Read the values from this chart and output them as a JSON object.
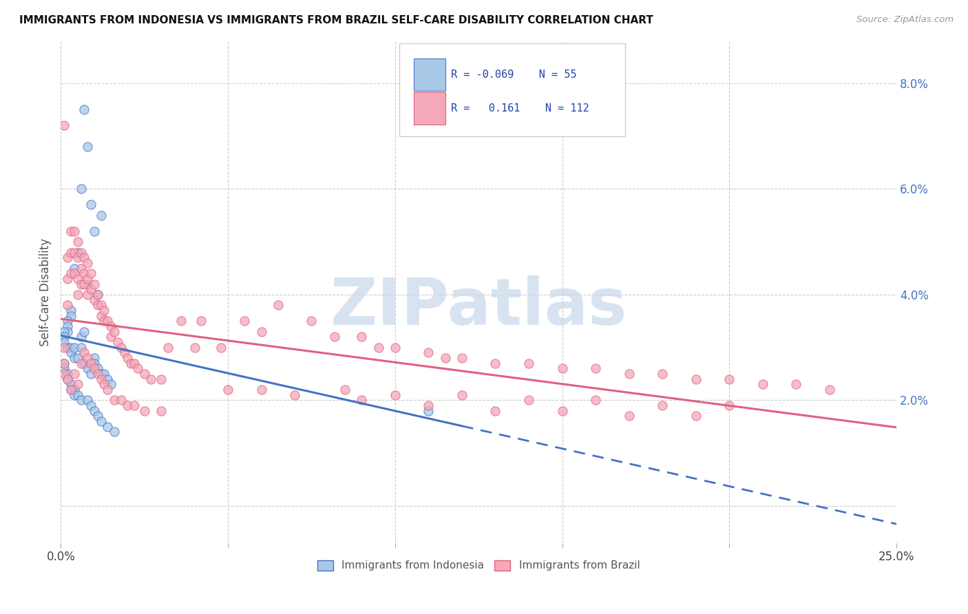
{
  "title": "IMMIGRANTS FROM INDONESIA VS IMMIGRANTS FROM BRAZIL SELF-CARE DISABILITY CORRELATION CHART",
  "source": "Source: ZipAtlas.com",
  "ylabel": "Self-Care Disability",
  "x_min": 0.0,
  "x_max": 0.25,
  "y_min": -0.007,
  "y_max": 0.088,
  "color_indonesia": "#a8c8e8",
  "color_brazil": "#f4a8b8",
  "color_indonesia_line": "#4472c4",
  "color_brazil_line": "#e06080",
  "watermark_color": "#c8d8ec",
  "indonesia_x": [
    0.007,
    0.008,
    0.006,
    0.009,
    0.012,
    0.01,
    0.005,
    0.004,
    0.008,
    0.011,
    0.003,
    0.003,
    0.002,
    0.002,
    0.002,
    0.001,
    0.001,
    0.001,
    0.002,
    0.003,
    0.003,
    0.004,
    0.004,
    0.005,
    0.006,
    0.006,
    0.007,
    0.007,
    0.008,
    0.009,
    0.01,
    0.01,
    0.011,
    0.012,
    0.013,
    0.014,
    0.015,
    0.001,
    0.001,
    0.002,
    0.002,
    0.003,
    0.003,
    0.004,
    0.004,
    0.005,
    0.006,
    0.008,
    0.009,
    0.01,
    0.011,
    0.012,
    0.014,
    0.016,
    0.11
  ],
  "indonesia_y": [
    0.075,
    0.068,
    0.06,
    0.057,
    0.055,
    0.052,
    0.048,
    0.045,
    0.042,
    0.04,
    0.037,
    0.036,
    0.035,
    0.034,
    0.033,
    0.033,
    0.032,
    0.031,
    0.03,
    0.03,
    0.029,
    0.03,
    0.028,
    0.028,
    0.03,
    0.032,
    0.027,
    0.033,
    0.026,
    0.025,
    0.028,
    0.027,
    0.026,
    0.025,
    0.025,
    0.024,
    0.023,
    0.027,
    0.026,
    0.025,
    0.024,
    0.023,
    0.022,
    0.022,
    0.021,
    0.021,
    0.02,
    0.02,
    0.019,
    0.018,
    0.017,
    0.016,
    0.015,
    0.014,
    0.018
  ],
  "brazil_x": [
    0.001,
    0.001,
    0.001,
    0.002,
    0.002,
    0.002,
    0.003,
    0.003,
    0.003,
    0.004,
    0.004,
    0.004,
    0.005,
    0.005,
    0.005,
    0.005,
    0.006,
    0.006,
    0.006,
    0.007,
    0.007,
    0.007,
    0.008,
    0.008,
    0.008,
    0.009,
    0.009,
    0.01,
    0.01,
    0.011,
    0.011,
    0.012,
    0.012,
    0.013,
    0.013,
    0.014,
    0.015,
    0.015,
    0.016,
    0.017,
    0.018,
    0.019,
    0.02,
    0.021,
    0.022,
    0.023,
    0.025,
    0.027,
    0.03,
    0.032,
    0.036,
    0.04,
    0.042,
    0.048,
    0.055,
    0.06,
    0.065,
    0.075,
    0.082,
    0.09,
    0.095,
    0.1,
    0.11,
    0.115,
    0.12,
    0.13,
    0.14,
    0.15,
    0.16,
    0.17,
    0.18,
    0.19,
    0.2,
    0.21,
    0.22,
    0.23,
    0.001,
    0.002,
    0.003,
    0.004,
    0.005,
    0.006,
    0.007,
    0.008,
    0.009,
    0.01,
    0.011,
    0.012,
    0.013,
    0.014,
    0.016,
    0.018,
    0.02,
    0.022,
    0.025,
    0.03,
    0.06,
    0.085,
    0.1,
    0.12,
    0.14,
    0.16,
    0.18,
    0.2,
    0.05,
    0.07,
    0.09,
    0.11,
    0.13,
    0.15,
    0.17,
    0.19
  ],
  "brazil_y": [
    0.072,
    0.03,
    0.027,
    0.047,
    0.043,
    0.038,
    0.052,
    0.048,
    0.044,
    0.052,
    0.048,
    0.044,
    0.05,
    0.047,
    0.043,
    0.04,
    0.048,
    0.045,
    0.042,
    0.047,
    0.044,
    0.042,
    0.046,
    0.043,
    0.04,
    0.044,
    0.041,
    0.042,
    0.039,
    0.04,
    0.038,
    0.038,
    0.036,
    0.037,
    0.035,
    0.035,
    0.034,
    0.032,
    0.033,
    0.031,
    0.03,
    0.029,
    0.028,
    0.027,
    0.027,
    0.026,
    0.025,
    0.024,
    0.024,
    0.03,
    0.035,
    0.03,
    0.035,
    0.03,
    0.035,
    0.033,
    0.038,
    0.035,
    0.032,
    0.032,
    0.03,
    0.03,
    0.029,
    0.028,
    0.028,
    0.027,
    0.027,
    0.026,
    0.026,
    0.025,
    0.025,
    0.024,
    0.024,
    0.023,
    0.023,
    0.022,
    0.025,
    0.024,
    0.022,
    0.025,
    0.023,
    0.027,
    0.029,
    0.028,
    0.027,
    0.026,
    0.025,
    0.024,
    0.023,
    0.022,
    0.02,
    0.02,
    0.019,
    0.019,
    0.018,
    0.018,
    0.022,
    0.022,
    0.021,
    0.021,
    0.02,
    0.02,
    0.019,
    0.019,
    0.022,
    0.021,
    0.02,
    0.019,
    0.018,
    0.018,
    0.017,
    0.017
  ]
}
